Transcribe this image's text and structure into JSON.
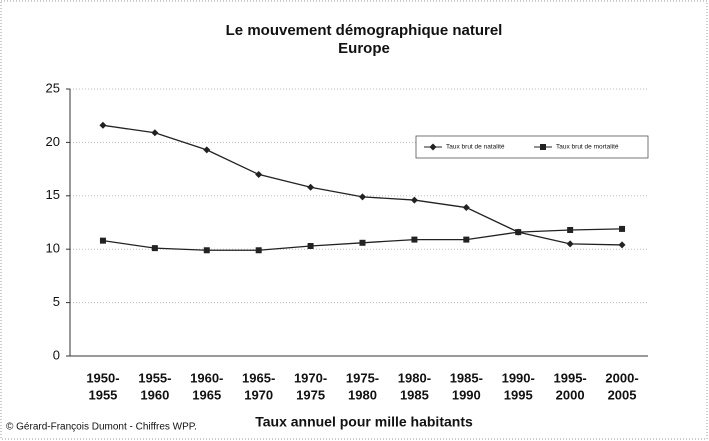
{
  "chart_data": {
    "type": "line",
    "title": [
      "Le mouvement démographique naturel",
      "Europe"
    ],
    "categories": [
      [
        "1950-",
        "1955"
      ],
      [
        "1955-",
        "1960"
      ],
      [
        "1960-",
        "1965"
      ],
      [
        "1965-",
        "1970"
      ],
      [
        "1970-",
        "1975"
      ],
      [
        "1975-",
        "1980"
      ],
      [
        "1980-",
        "1985"
      ],
      [
        "1985-",
        "1990"
      ],
      [
        "1990-",
        "1995"
      ],
      [
        "1995-",
        "2000"
      ],
      [
        "2000-",
        "2005"
      ]
    ],
    "series": [
      {
        "name": "Taux brut de natalité",
        "color": "#222222",
        "marker": "diamond",
        "values": [
          21.6,
          20.9,
          19.3,
          17.0,
          15.8,
          14.9,
          14.6,
          13.9,
          11.6,
          10.5,
          10.4
        ]
      },
      {
        "name": "Taux brut de mortalité",
        "color": "#222222",
        "marker": "square",
        "values": [
          10.8,
          10.1,
          9.9,
          9.9,
          10.3,
          10.6,
          10.9,
          10.9,
          11.6,
          11.8,
          11.9
        ]
      }
    ],
    "ylim": [
      0,
      25
    ],
    "yticks": [
      0,
      5,
      10,
      15,
      20,
      25
    ],
    "grid": true,
    "xlabel": "Taux annuel pour mille habitants",
    "source": "© Gérard-François Dumont - Chiffres WPP.",
    "legend": "upper right"
  }
}
